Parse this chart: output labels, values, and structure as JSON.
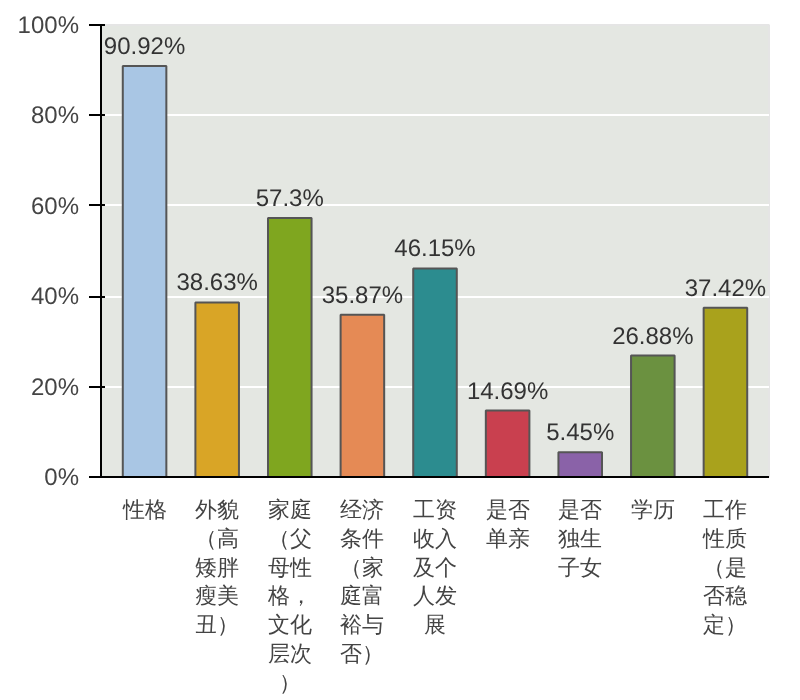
{
  "chart_data": {
    "type": "bar",
    "categories": [
      "性格",
      "外貌（高矮胖瘦美丑）",
      "家庭（父母性格，文化层次）",
      "经济条件（家庭富裕与否）",
      "工资收入及个人发展",
      "是否单亲",
      "是否独生子女",
      "学历",
      "工作性质（是否稳定）"
    ],
    "values": [
      90.92,
      38.63,
      57.3,
      35.87,
      46.15,
      14.69,
      5.45,
      26.88,
      37.42
    ],
    "colors": [
      "#a9c6e4",
      "#d9a526",
      "#7fa61f",
      "#e58a55",
      "#2c8c8f",
      "#c9404f",
      "#8a62a8",
      "#6b9140",
      "#a9a21c"
    ],
    "value_labels": [
      "90.92%",
      "38.63%",
      "57.3%",
      "35.87%",
      "46.15%",
      "14.69%",
      "5.45%",
      "26.88%",
      "37.42%"
    ],
    "ylim": [
      0,
      100
    ],
    "yticks": [
      {
        "value": 0,
        "label": "0%"
      },
      {
        "value": 20,
        "label": "20%"
      },
      {
        "value": 40,
        "label": "40%"
      },
      {
        "value": 60,
        "label": "60%"
      },
      {
        "value": 80,
        "label": "80%"
      },
      {
        "value": 100,
        "label": "100%"
      }
    ],
    "grid": "y"
  }
}
